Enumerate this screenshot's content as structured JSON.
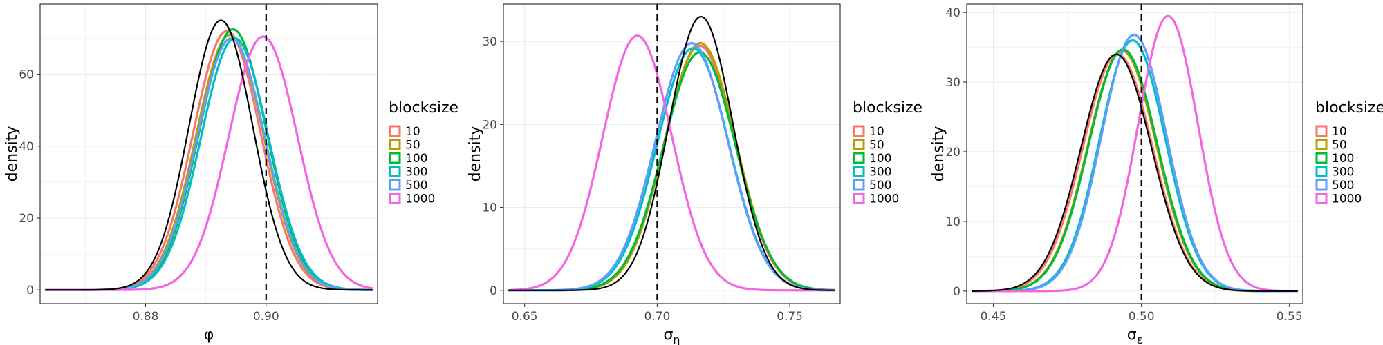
{
  "legend": {
    "title": "blocksize",
    "entries": [
      {
        "label": "10",
        "color": "#F8766D"
      },
      {
        "label": "50",
        "color": "#B79F00"
      },
      {
        "label": "100",
        "color": "#00BA38"
      },
      {
        "label": "300",
        "color": "#00BFC4"
      },
      {
        "label": "500",
        "color": "#619CFF"
      },
      {
        "label": "1000",
        "color": "#F564E3"
      }
    ]
  },
  "chart_data": [
    {
      "type": "line",
      "title": "",
      "xlabel": "φ",
      "ylabel": "density",
      "xlim": [
        0.8625,
        0.9185
      ],
      "ylim": [
        -3.8,
        79.5
      ],
      "xticks": [
        {
          "value": 0.88,
          "label": "0.88"
        },
        {
          "value": 0.9,
          "label": "0.90"
        }
      ],
      "yticks": [
        {
          "value": 0,
          "label": "0"
        },
        {
          "value": 20,
          "label": "20"
        },
        {
          "value": 40,
          "label": "40"
        },
        {
          "value": 60,
          "label": "60"
        }
      ],
      "grid": true,
      "vline": 0.9,
      "black_curve": {
        "mean": 0.8925,
        "sd": 0.0053,
        "peak": 75
      },
      "series": [
        {
          "name": "10",
          "mean": 0.8935,
          "sd": 0.0056,
          "peak": 72
        },
        {
          "name": "50",
          "mean": 0.894,
          "sd": 0.0056,
          "peak": 71
        },
        {
          "name": "100",
          "mean": 0.8945,
          "sd": 0.0056,
          "peak": 72.5
        },
        {
          "name": "300",
          "mean": 0.8948,
          "sd": 0.0056,
          "peak": 70
        },
        {
          "name": "500",
          "mean": 0.8942,
          "sd": 0.0056,
          "peak": 70
        },
        {
          "name": "1000",
          "mean": 0.8995,
          "sd": 0.0057,
          "peak": 70.5
        }
      ]
    },
    {
      "type": "line",
      "title": "",
      "xlabel": "σ_η",
      "ylabel": "density",
      "xlim": [
        0.642,
        0.769
      ],
      "ylim": [
        -1.6,
        34.5
      ],
      "xticks": [
        {
          "value": 0.65,
          "label": "0.65"
        },
        {
          "value": 0.7,
          "label": "0.70"
        },
        {
          "value": 0.75,
          "label": "0.75"
        }
      ],
      "yticks": [
        {
          "value": 0,
          "label": "0"
        },
        {
          "value": 10,
          "label": "10"
        },
        {
          "value": 20,
          "label": "20"
        },
        {
          "value": 30,
          "label": "30"
        }
      ],
      "grid": true,
      "vline": 0.7,
      "black_curve": {
        "mean": 0.7165,
        "sd": 0.0121,
        "peak": 33
      },
      "series": [
        {
          "name": "10",
          "mean": 0.716,
          "sd": 0.0133,
          "peak": 29.5
        },
        {
          "name": "50",
          "mean": 0.7163,
          "sd": 0.0133,
          "peak": 29.8
        },
        {
          "name": "100",
          "mean": 0.716,
          "sd": 0.0136,
          "peak": 28.7
        },
        {
          "name": "300",
          "mean": 0.7135,
          "sd": 0.0135,
          "peak": 29.2
        },
        {
          "name": "500",
          "mean": 0.713,
          "sd": 0.0136,
          "peak": 29.8
        },
        {
          "name": "1000",
          "mean": 0.6925,
          "sd": 0.013,
          "peak": 30.7
        }
      ]
    },
    {
      "type": "line",
      "title": "",
      "xlabel": "σ_ε",
      "ylabel": "density",
      "xlim": [
        0.441,
        0.5545
      ],
      "ylim": [
        -1.8,
        41.2
      ],
      "xticks": [
        {
          "value": 0.45,
          "label": "0.45"
        },
        {
          "value": 0.5,
          "label": "0.50"
        },
        {
          "value": 0.55,
          "label": "0.55"
        }
      ],
      "yticks": [
        {
          "value": 0,
          "label": "0"
        },
        {
          "value": 10,
          "label": "10"
        },
        {
          "value": 20,
          "label": "20"
        },
        {
          "value": 30,
          "label": "30"
        },
        {
          "value": 40,
          "label": "40"
        }
      ],
      "grid": true,
      "vline": 0.5,
      "black_curve": {
        "mean": 0.4915,
        "sd": 0.0119,
        "peak": 34
      },
      "series": [
        {
          "name": "10",
          "mean": 0.492,
          "sd": 0.0118,
          "peak": 34
        },
        {
          "name": "50",
          "mean": 0.4935,
          "sd": 0.0116,
          "peak": 34.5
        },
        {
          "name": "100",
          "mean": 0.4938,
          "sd": 0.0116,
          "peak": 34.7
        },
        {
          "name": "300",
          "mean": 0.497,
          "sd": 0.0111,
          "peak": 36
        },
        {
          "name": "500",
          "mean": 0.4975,
          "sd": 0.011,
          "peak": 36.8
        },
        {
          "name": "1000",
          "mean": 0.509,
          "sd": 0.0101,
          "peak": 39.5
        }
      ]
    }
  ]
}
